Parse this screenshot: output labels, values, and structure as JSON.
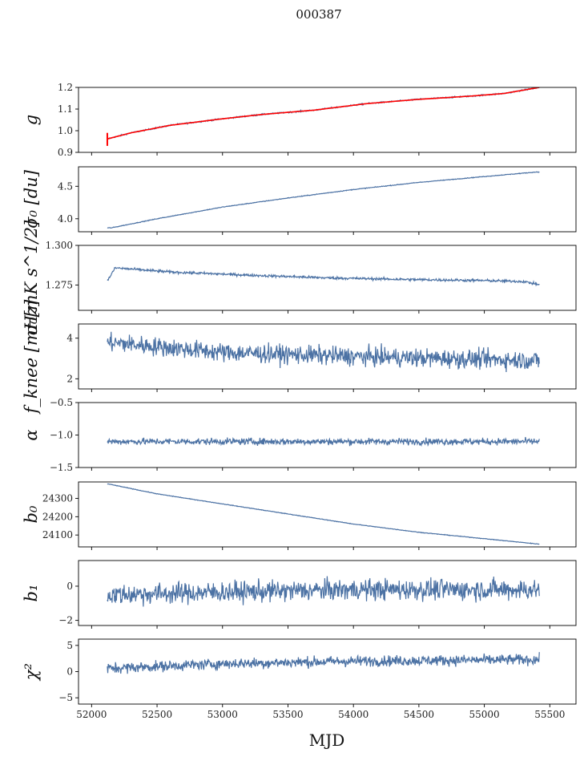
{
  "figure": {
    "suptitle": "000387",
    "xlabel": "MJD"
  },
  "colors": {
    "series": "#4c72a4",
    "highlight": "#ff0000",
    "axes": "#000000"
  },
  "chart_data": {
    "type": "line",
    "x_range": [
      52120,
      55420
    ],
    "xlim": [
      51900,
      55700
    ],
    "xticks": [
      52000,
      52500,
      53000,
      53500,
      54000,
      54500,
      55000,
      55500
    ],
    "panels": [
      {
        "name": "g",
        "ylabel": "g",
        "ylim": [
          0.9,
          1.2
        ],
        "yticks": [
          0.9,
          1.0,
          1.1,
          1.2
        ],
        "ytick_labels": [
          "0.9",
          "1.0",
          "1.1",
          "1.2"
        ],
        "trend": [
          [
            52120,
            0.962
          ],
          [
            52300,
            0.99
          ],
          [
            52600,
            1.025
          ],
          [
            53000,
            1.055
          ],
          [
            53300,
            1.075
          ],
          [
            53700,
            1.095
          ],
          [
            54100,
            1.125
          ],
          [
            54500,
            1.145
          ],
          [
            54900,
            1.16
          ],
          [
            55150,
            1.172
          ],
          [
            55420,
            1.2
          ]
        ],
        "noise": 0.003,
        "overlay": {
          "color": "red",
          "trend": [
            [
              52120,
              0.962
            ],
            [
              52300,
              0.99
            ],
            [
              52600,
              1.025
            ],
            [
              53000,
              1.055
            ],
            [
              53300,
              1.075
            ],
            [
              53700,
              1.095
            ],
            [
              54100,
              1.125
            ],
            [
              54500,
              1.145
            ],
            [
              54900,
              1.16
            ],
            [
              55150,
              1.172
            ],
            [
              55420,
              1.2
            ]
          ],
          "errorbar_x": 52120,
          "errorbar_range": [
            0.93,
            0.99
          ]
        }
      },
      {
        "name": "sigma0-du",
        "ylabel": "σ₀ [du]",
        "ylim": [
          3.8,
          4.8
        ],
        "yticks": [
          4.0,
          4.5
        ],
        "ytick_labels": [
          "4.0",
          "4.5"
        ],
        "trend": [
          [
            52150,
            3.86
          ],
          [
            52500,
            4.0
          ],
          [
            53000,
            4.18
          ],
          [
            53500,
            4.32
          ],
          [
            54000,
            4.45
          ],
          [
            54500,
            4.56
          ],
          [
            55000,
            4.65
          ],
          [
            55400,
            4.72
          ]
        ],
        "noise": 0.005
      },
      {
        "name": "sigma0-mk",
        "ylabel": "σ₀[mK s^1/2]",
        "ylim": [
          1.259,
          1.3
        ],
        "yticks": [
          1.275,
          1.3
        ],
        "ytick_labels": [
          "1.275",
          "1.300"
        ],
        "trend": [
          [
            52120,
            1.2775
          ],
          [
            52180,
            1.2858
          ],
          [
            52600,
            1.2832
          ],
          [
            53200,
            1.2812
          ],
          [
            53800,
            1.2795
          ],
          [
            54400,
            1.2785
          ],
          [
            55000,
            1.2778
          ],
          [
            55300,
            1.2772
          ],
          [
            55420,
            1.2752
          ]
        ],
        "noise": 0.0008
      },
      {
        "name": "fknee",
        "ylabel": "f_knee [mHz]",
        "ylim": [
          1.5,
          4.7
        ],
        "yticks": [
          2,
          4
        ],
        "ytick_labels": [
          "2",
          "4"
        ],
        "trend": [
          [
            52120,
            3.8
          ],
          [
            53000,
            3.3
          ],
          [
            54000,
            3.1
          ],
          [
            55420,
            2.9
          ]
        ],
        "noise": 0.45
      },
      {
        "name": "alpha",
        "ylabel": "α",
        "ylim": [
          -1.5,
          -0.5
        ],
        "yticks": [
          -1.5,
          -1.0,
          -0.5
        ],
        "ytick_labels": [
          "−1.5",
          "−1.0",
          "−0.5"
        ],
        "trend": [
          [
            52120,
            -1.1
          ],
          [
            55420,
            -1.1
          ]
        ],
        "noise": 0.05
      },
      {
        "name": "b0",
        "ylabel": "b₀",
        "ylim": [
          24035,
          24390
        ],
        "yticks": [
          24100,
          24200,
          24300
        ],
        "ytick_labels": [
          "24100",
          "24200",
          "24300"
        ],
        "trend": [
          [
            52120,
            24380
          ],
          [
            52500,
            24325
          ],
          [
            53000,
            24270
          ],
          [
            53500,
            24215
          ],
          [
            54000,
            24160
          ],
          [
            54500,
            24115
          ],
          [
            55000,
            24080
          ],
          [
            55420,
            24050
          ]
        ],
        "noise": 1.5
      },
      {
        "name": "b1",
        "ylabel": "b₁",
        "ylim": [
          -2.3,
          1.5
        ],
        "yticks": [
          -2,
          0
        ],
        "ytick_labels": [
          "−2",
          "0"
        ],
        "trend": [
          [
            52120,
            -0.5
          ],
          [
            53000,
            -0.35
          ],
          [
            54000,
            -0.2
          ],
          [
            55420,
            -0.2
          ]
        ],
        "noise": 0.6
      },
      {
        "name": "chi2",
        "ylabel": "χ²",
        "ylim": [
          -6.2,
          6.2
        ],
        "yticks": [
          -5,
          0,
          5
        ],
        "ytick_labels": [
          "−5",
          "0",
          "5"
        ],
        "trend": [
          [
            52120,
            0.6
          ],
          [
            53000,
            1.5
          ],
          [
            54000,
            2.0
          ],
          [
            55420,
            2.3
          ]
        ],
        "noise": 1.0
      }
    ]
  }
}
